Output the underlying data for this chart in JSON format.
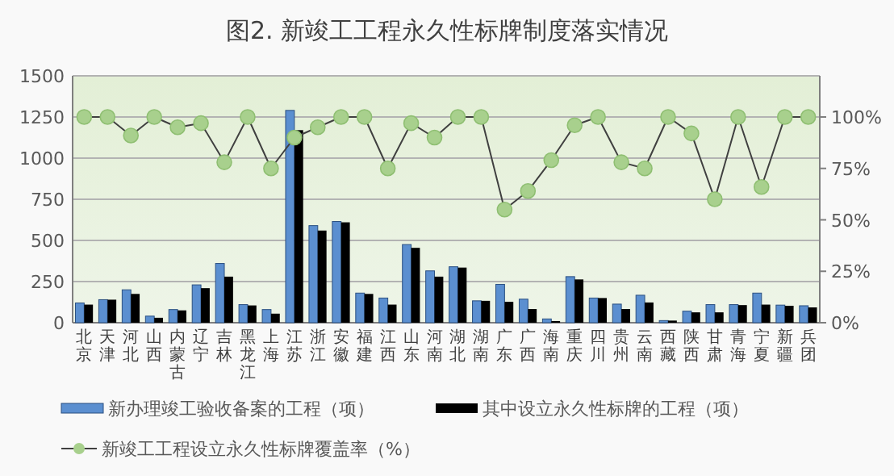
{
  "chart_data": {
    "type": "bar",
    "title": "图2. 新竣工工程永久性标牌制度落实情况",
    "categories": [
      "北京",
      "天津",
      "河北",
      "山西",
      "内蒙古",
      "辽宁",
      "吉林",
      "黑龙江",
      "上海",
      "江苏",
      "浙江",
      "安徽",
      "福建",
      "江西",
      "山东",
      "河南",
      "湖北",
      "湖南",
      "广东",
      "广西",
      "海南",
      "重庆",
      "四川",
      "贵州",
      "云南",
      "西藏",
      "陕西",
      "甘肃",
      "青海",
      "宁夏",
      "新疆",
      "兵团"
    ],
    "series": [
      {
        "name": "新办理竣工验收备案的工程（项）",
        "color": "#5b8fd0",
        "values": [
          120,
          140,
          200,
          40,
          80,
          230,
          360,
          110,
          80,
          1290,
          590,
          615,
          180,
          150,
          475,
          315,
          340,
          133,
          233,
          143,
          23,
          280,
          150,
          113,
          167,
          13,
          70,
          110,
          110,
          180,
          107,
          103
        ]
      },
      {
        "name": "其中设立永久性标牌的工程（项）",
        "color": "#000000",
        "values": [
          110,
          140,
          175,
          30,
          75,
          210,
          280,
          105,
          55,
          1170,
          560,
          610,
          175,
          110,
          455,
          280,
          335,
          133,
          127,
          83,
          10,
          263,
          150,
          83,
          123,
          13,
          63,
          63,
          107,
          110,
          103,
          93
        ]
      },
      {
        "name": "新竣工工程设立永久性标牌覆盖率（%）",
        "type": "line",
        "axis": "y2",
        "color": "#404040",
        "values": [
          100,
          100,
          91,
          100,
          95,
          97,
          78,
          100,
          75,
          90,
          95,
          100,
          100,
          75,
          97,
          90,
          100,
          100,
          55,
          64,
          79,
          96,
          100,
          78,
          75,
          100,
          92,
          60,
          100,
          66,
          100,
          100
        ]
      }
    ],
    "ylim": [
      0,
      1500
    ],
    "yticks": [
      0,
      250,
      500,
      750,
      1000,
      1250,
      1500
    ],
    "y2lim": [
      0,
      120
    ],
    "y2ticks": [
      {
        "value": 0,
        "label": "0%"
      },
      {
        "value": 25,
        "label": "25%"
      },
      {
        "value": 50,
        "label": "50%"
      },
      {
        "value": 75,
        "label": "75%"
      },
      {
        "value": 100,
        "label": "100%"
      }
    ],
    "grid": "y",
    "legend": "bottom",
    "marker": "circle",
    "line_style": "solid"
  }
}
